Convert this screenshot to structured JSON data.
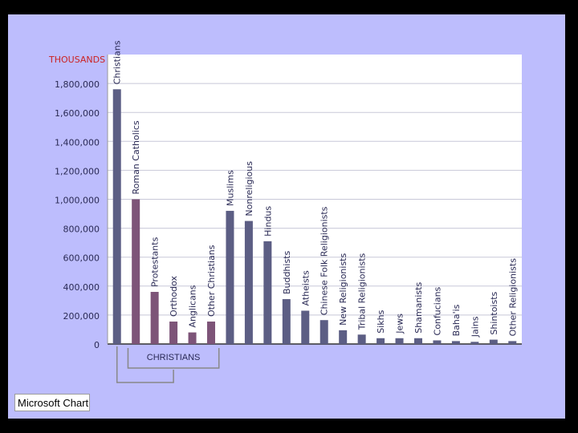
{
  "chart_data": {
    "type": "bar",
    "unit_label": "THOUSANDS",
    "ylim": [
      0,
      2000000
    ],
    "y_ticks": [
      "0",
      "200,000",
      "400,000",
      "600,000",
      "800,000",
      "1,000,000",
      "1,200,000",
      "1,400,000",
      "1,600,000",
      "1,800,000"
    ],
    "y_tick_values": [
      0,
      200000,
      400000,
      600000,
      800000,
      1000000,
      1200000,
      1400000,
      1600000,
      1800000
    ],
    "categories": [
      "Christians",
      "Roman Catholics",
      "Protestants",
      "Orthodox",
      "Anglicans",
      "Other Christians",
      "Muslims",
      "Nonreligious",
      "Hindus",
      "Buddhists",
      "Atheists",
      "Chinese Folk Religionists",
      "New Religionists",
      "Tribal Religionists",
      "Sikhs",
      "Jews",
      "Shamanists",
      "Confucians",
      "Baha'is",
      "Jains",
      "Shintoists",
      "Other Religionists"
    ],
    "values": [
      1760000,
      1000000,
      360000,
      155000,
      80000,
      155000,
      920000,
      850000,
      710000,
      310000,
      230000,
      165000,
      95000,
      65000,
      40000,
      40000,
      40000,
      25000,
      20000,
      15000,
      30000,
      20000
    ],
    "group_label": "CHRISTIANS",
    "colors": {
      "main": "#5c5e84",
      "christian_sub": "#7d5478",
      "plot_bg": "#ffffff",
      "grid": "#c8c8d8",
      "axis_text": "#2a2a55",
      "unit_label": "#cc2222"
    }
  },
  "caption": "Microsoft Chart"
}
